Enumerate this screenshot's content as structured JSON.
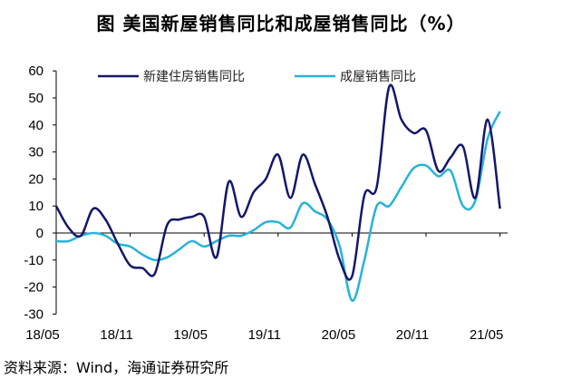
{
  "chart_data": {
    "type": "line",
    "title": "图  美国新屋销售同比和成屋销售同比（%）",
    "source": "资料来源：Wind，海通证券研究所",
    "ylim": [
      -30,
      60
    ],
    "yticks": [
      60,
      50,
      40,
      30,
      20,
      10,
      0,
      -10,
      -20,
      -30
    ],
    "xtick_labels": [
      "18/05",
      "18/11",
      "19/05",
      "19/11",
      "20/05",
      "20/11",
      "21/05"
    ],
    "xtick_index": [
      0,
      6,
      12,
      18,
      24,
      30,
      36
    ],
    "legend_position": "top",
    "series": [
      {
        "name": "新建住房销售同比",
        "color": "#14176b",
        "values": [
          10,
          2,
          -1,
          9,
          5,
          -4,
          -12,
          -13,
          -15,
          3,
          5,
          6,
          6,
          -9,
          19,
          6,
          15,
          20,
          29,
          13,
          29,
          18,
          6,
          -10,
          -16,
          14,
          17,
          54,
          42,
          37,
          38,
          23,
          28,
          32,
          13,
          42,
          9
        ]
      },
      {
        "name": "成屋销售同比",
        "color": "#27b2dc",
        "values": [
          -3,
          -3,
          -1,
          0,
          -1,
          -4,
          -5,
          -8,
          -10,
          -9,
          -6,
          -3,
          -5,
          -3,
          -1,
          -1,
          1,
          4,
          4,
          2,
          11,
          8,
          5,
          -5,
          -25,
          -10,
          10,
          10,
          17,
          24,
          25,
          21,
          23,
          10,
          12,
          35,
          45
        ]
      }
    ]
  }
}
